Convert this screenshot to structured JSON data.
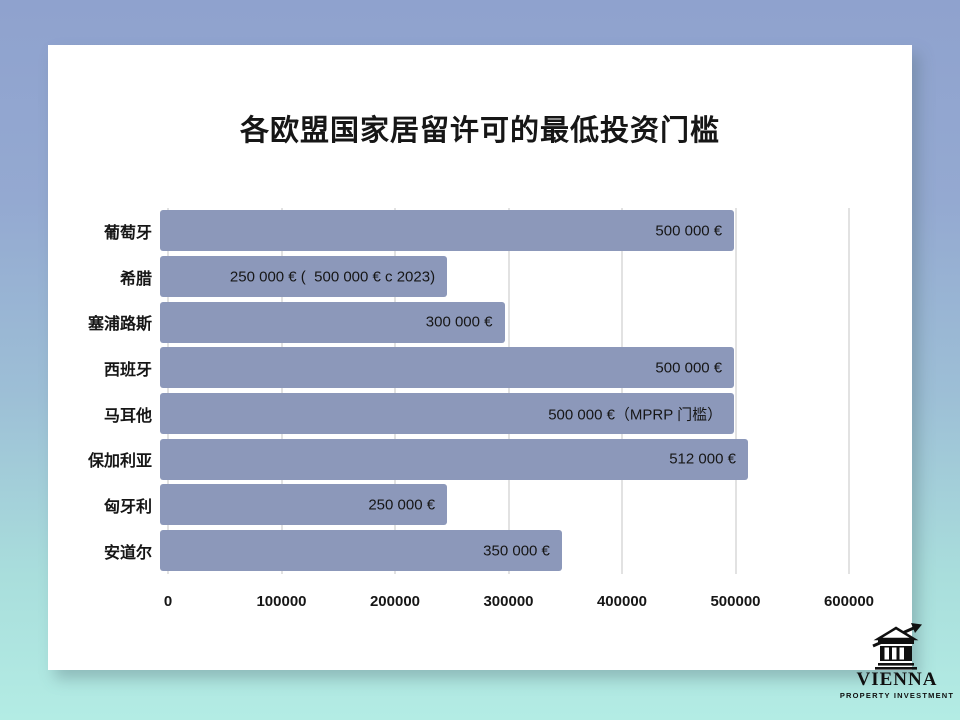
{
  "background": {
    "top_color": "#8FA2CE",
    "bottom_color": "#B3ECE4"
  },
  "card": {
    "bg_color": "#FFFFFF"
  },
  "title": "各欧盟国家居留许可的最低投资门槛",
  "chart_data": {
    "type": "bar",
    "orientation": "horizontal",
    "title": "各欧盟国家居留许可的最低投资门槛",
    "categories": [
      "葡萄牙",
      "希腊",
      "塞浦路斯",
      "西班牙",
      "马耳他",
      "保加利亚",
      "匈牙利",
      "安道尔"
    ],
    "values": [
      500000,
      250000,
      300000,
      500000,
      500000,
      512000,
      250000,
      350000
    ],
    "bar_labels": [
      "500 000 €",
      "250 000 € (  500 000 € c 2023)",
      "300 000 €",
      "500 000 €",
      "500 000 €（MPRP 门槛）",
      "512 000 €",
      "250 000 €",
      "350 000 €"
    ],
    "xlabel": "",
    "ylabel": "",
    "xlim": [
      0,
      600000
    ],
    "x_ticks": [
      0,
      100000,
      200000,
      300000,
      400000,
      500000,
      600000
    ],
    "x_tick_labels": [
      "0",
      "100000",
      "200000",
      "300000",
      "400000",
      "500000",
      "600000"
    ],
    "grid": true,
    "legend": false,
    "bar_color": "#8C98BA",
    "gridline_color": "#C6C6C6"
  },
  "logo": {
    "name": "VIENNA",
    "subtitle": "PROPERTY INVESTMENT"
  }
}
